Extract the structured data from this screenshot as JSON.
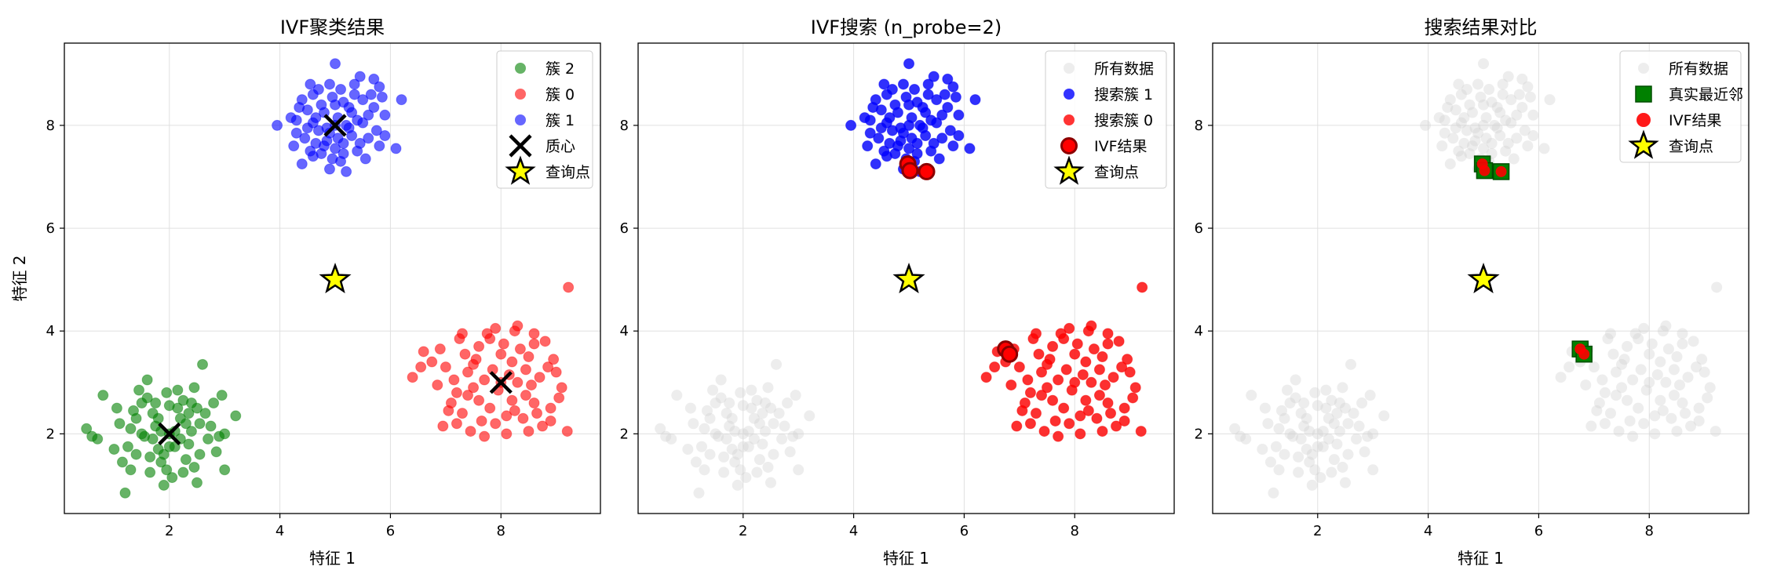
{
  "chart_data": [
    {
      "type": "scatter",
      "title": "IVF聚类结果",
      "xlabel": "特征 1",
      "ylabel": "特征 2",
      "xlim": [
        0.1,
        9.8
      ],
      "ylim": [
        0.45,
        9.6
      ],
      "xticks": [
        2,
        4,
        6,
        8
      ],
      "yticks": [
        2,
        4,
        6,
        8
      ],
      "grid": true,
      "legend_position": "top-right",
      "series": [
        {
          "name": "簇 2",
          "kind": "cluster",
          "color": "#008000",
          "cluster": 2
        },
        {
          "name": "簇 0",
          "kind": "cluster",
          "color": "#ff0000",
          "cluster": 0
        },
        {
          "name": "簇 1",
          "kind": "cluster",
          "color": "#0000ff",
          "cluster": 1
        },
        {
          "name": "质心",
          "kind": "centroid",
          "color": "#000000",
          "points": [
            [
              2.0,
              2.0
            ],
            [
              8.0,
              3.0
            ],
            [
              5.0,
              8.0
            ]
          ]
        },
        {
          "name": "查询点",
          "kind": "query",
          "color": "#ffff00",
          "points": [
            [
              5.0,
              5.0
            ]
          ]
        }
      ]
    },
    {
      "type": "scatter",
      "title": "IVF搜索 (n_probe=2)",
      "xlabel": "特征 1",
      "ylabel": "",
      "xlim": [
        0.1,
        9.8
      ],
      "ylim": [
        0.45,
        9.6
      ],
      "xticks": [
        2,
        4,
        6,
        8
      ],
      "yticks": [
        2,
        4,
        6,
        8
      ],
      "grid": true,
      "legend_position": "top-right",
      "series": [
        {
          "name": "所有数据",
          "kind": "background",
          "color": "#d3d3d3"
        },
        {
          "name": "搜索簇 1",
          "kind": "cluster",
          "color": "#0000ff",
          "cluster": 1
        },
        {
          "name": "搜索簇 0",
          "kind": "cluster",
          "color": "#ff0000",
          "cluster": 0
        },
        {
          "name": "IVF结果",
          "kind": "result",
          "color": "#ff0000",
          "points": [
            [
              4.98,
              7.25
            ],
            [
              5.02,
              7.12
            ],
            [
              5.32,
              7.1
            ],
            [
              6.75,
              3.65
            ],
            [
              6.82,
              3.55
            ]
          ]
        },
        {
          "name": "查询点",
          "kind": "query",
          "color": "#ffff00",
          "points": [
            [
              5.0,
              5.0
            ]
          ]
        }
      ]
    },
    {
      "type": "scatter",
      "title": "搜索结果对比",
      "xlabel": "特征 1",
      "ylabel": "",
      "xlim": [
        0.1,
        9.8
      ],
      "ylim": [
        0.45,
        9.6
      ],
      "xticks": [
        2,
        4,
        6,
        8
      ],
      "yticks": [
        2,
        4,
        6,
        8
      ],
      "grid": true,
      "legend_position": "top-right",
      "series": [
        {
          "name": "所有数据",
          "kind": "background",
          "color": "#d3d3d3"
        },
        {
          "name": "真实最近邻",
          "kind": "truth",
          "color": "#008000",
          "points": [
            [
              4.98,
              7.25
            ],
            [
              5.02,
              7.12
            ],
            [
              5.32,
              7.1
            ],
            [
              6.75,
              3.65
            ],
            [
              6.82,
              3.55
            ]
          ]
        },
        {
          "name": "IVF结果",
          "kind": "result_small",
          "color": "#ff0000",
          "points": [
            [
              4.98,
              7.25
            ],
            [
              5.02,
              7.12
            ],
            [
              5.32,
              7.1
            ],
            [
              6.75,
              3.65
            ],
            [
              6.82,
              3.55
            ]
          ]
        },
        {
          "name": "查询点",
          "kind": "query",
          "color": "#ffff00",
          "points": [
            [
              5.0,
              5.0
            ]
          ]
        }
      ]
    }
  ],
  "clusters": {
    "0": [
      [
        8.0,
        3.0
      ],
      [
        7.4,
        3.2
      ],
      [
        8.6,
        2.6
      ],
      [
        9.22,
        4.85
      ],
      [
        9.2,
        2.05
      ],
      [
        6.4,
        3.1
      ],
      [
        6.6,
        3.6
      ],
      [
        8.3,
        4.1
      ],
      [
        7.9,
        4.05
      ],
      [
        8.1,
        2.0
      ],
      [
        7.7,
        1.95
      ],
      [
        8.8,
        3.8
      ],
      [
        8.5,
        3.5
      ],
      [
        7.2,
        2.8
      ],
      [
        7.6,
        3.7
      ],
      [
        8.4,
        2.3
      ],
      [
        9.0,
        3.2
      ],
      [
        7.0,
        3.3
      ],
      [
        8.2,
        3.4
      ],
      [
        7.8,
        2.5
      ],
      [
        8.9,
        2.5
      ],
      [
        7.3,
        2.4
      ],
      [
        8.7,
        3.1
      ],
      [
        7.5,
        2.9
      ],
      [
        9.1,
        2.9
      ],
      [
        8.05,
        3.75
      ],
      [
        7.35,
        3.55
      ],
      [
        8.6,
        3.95
      ],
      [
        7.1,
        2.6
      ],
      [
        6.95,
        2.15
      ],
      [
        7.65,
        2.25
      ],
      [
        8.45,
        2.75
      ],
      [
        8.25,
        2.45
      ],
      [
        7.85,
        3.25
      ],
      [
        7.55,
        3.45
      ],
      [
        8.95,
        3.45
      ],
      [
        7.25,
        3.85
      ],
      [
        6.85,
        2.95
      ],
      [
        8.35,
        3.65
      ],
      [
        7.95,
        2.85
      ],
      [
        8.75,
        2.15
      ],
      [
        7.45,
        2.05
      ],
      [
        8.15,
        3.15
      ],
      [
        7.75,
        3.95
      ],
      [
        6.75,
        3.4
      ],
      [
        8.55,
        2.95
      ],
      [
        9.05,
        2.7
      ],
      [
        7.15,
        3.05
      ],
      [
        8.65,
        2.4
      ],
      [
        7.05,
        2.45
      ],
      [
        8.85,
        3.3
      ],
      [
        7.6,
        2.65
      ],
      [
        8.3,
        3.0
      ],
      [
        7.9,
        2.2
      ],
      [
        8.0,
        3.55
      ],
      [
        7.4,
        2.75
      ],
      [
        8.45,
        3.25
      ],
      [
        7.7,
        3.05
      ],
      [
        8.2,
        2.65
      ],
      [
        6.9,
        3.65
      ],
      [
        7.3,
        3.95
      ],
      [
        8.1,
        2.35
      ],
      [
        7.5,
        3.35
      ],
      [
        8.6,
        3.75
      ],
      [
        8.9,
        2.25
      ],
      [
        6.55,
        3.3
      ],
      [
        7.8,
        3.85
      ],
      [
        8.25,
        4.0
      ],
      [
        7.2,
        2.2
      ],
      [
        8.5,
        2.05
      ]
    ],
    "1": [
      [
        5.0,
        8.0
      ],
      [
        4.5,
        8.3
      ],
      [
        5.5,
        8.5
      ],
      [
        4.8,
        7.6
      ],
      [
        5.3,
        7.8
      ],
      [
        5.0,
        9.2
      ],
      [
        3.95,
        8.0
      ],
      [
        4.4,
        7.25
      ],
      [
        5.2,
        7.1
      ],
      [
        4.9,
        7.15
      ],
      [
        5.8,
        7.6
      ],
      [
        6.1,
        7.55
      ],
      [
        6.2,
        8.5
      ],
      [
        5.7,
        8.9
      ],
      [
        5.1,
        8.7
      ],
      [
        4.6,
        8.6
      ],
      [
        4.3,
        8.1
      ],
      [
        5.6,
        8.2
      ],
      [
        5.4,
        8.1
      ],
      [
        4.7,
        7.9
      ],
      [
        5.9,
        8.2
      ],
      [
        4.55,
        7.5
      ],
      [
        5.15,
        7.45
      ],
      [
        4.75,
        8.4
      ],
      [
        5.25,
        8.35
      ],
      [
        4.95,
        8.55
      ],
      [
        5.45,
        7.65
      ],
      [
        4.85,
        7.95
      ],
      [
        5.05,
        7.75
      ],
      [
        4.65,
        8.15
      ],
      [
        5.35,
        8.6
      ],
      [
        4.45,
        7.75
      ],
      [
        5.75,
        7.9
      ],
      [
        4.25,
        7.6
      ],
      [
        5.55,
        7.35
      ],
      [
        4.9,
        8.8
      ],
      [
        5.2,
        8.0
      ],
      [
        4.6,
        7.4
      ],
      [
        5.65,
        8.6
      ],
      [
        4.35,
        8.35
      ],
      [
        5.1,
        7.3
      ],
      [
        4.8,
        8.25
      ],
      [
        5.45,
        8.95
      ],
      [
        5.85,
        8.55
      ],
      [
        4.5,
        7.95
      ],
      [
        5.0,
        7.55
      ],
      [
        5.3,
        8.25
      ],
      [
        4.7,
        8.7
      ],
      [
        5.15,
        8.45
      ],
      [
        4.95,
        7.35
      ],
      [
        5.6,
        7.75
      ],
      [
        4.4,
        8.5
      ],
      [
        5.4,
        7.5
      ],
      [
        4.85,
        7.7
      ],
      [
        5.05,
        8.15
      ],
      [
        4.3,
        7.85
      ],
      [
        5.7,
        8.35
      ],
      [
        4.65,
        7.65
      ],
      [
        5.25,
        7.95
      ],
      [
        4.55,
        8.8
      ],
      [
        5.9,
        7.8
      ],
      [
        5.5,
        8.05
      ],
      [
        4.75,
        7.45
      ],
      [
        5.35,
        8.8
      ],
      [
        5.0,
        8.4
      ],
      [
        4.2,
        8.15
      ],
      [
        5.8,
        8.75
      ],
      [
        4.9,
        7.85
      ],
      [
        5.15,
        7.65
      ],
      [
        4.6,
        8.05
      ]
    ],
    "2": [
      [
        2.0,
        2.0
      ],
      [
        2.2,
        2.3
      ],
      [
        1.8,
        1.7
      ],
      [
        1.5,
        2.6
      ],
      [
        2.5,
        2.5
      ],
      [
        1.2,
        0.85
      ],
      [
        1.9,
        1.0
      ],
      [
        2.6,
        3.35
      ],
      [
        3.0,
        2.0
      ],
      [
        3.0,
        1.3
      ],
      [
        0.5,
        2.1
      ],
      [
        0.8,
        2.75
      ],
      [
        1.3,
        2.1
      ],
      [
        2.8,
        2.6
      ],
      [
        1.6,
        3.05
      ],
      [
        2.3,
        1.5
      ],
      [
        1.7,
        2.4
      ],
      [
        2.1,
        1.75
      ],
      [
        1.4,
        1.6
      ],
      [
        2.4,
        2.05
      ],
      [
        1.1,
        2.2
      ],
      [
        2.7,
        1.9
      ],
      [
        1.95,
        2.8
      ],
      [
        2.45,
        1.35
      ],
      [
        1.65,
        1.25
      ],
      [
        2.05,
        1.15
      ],
      [
        1.35,
        2.45
      ],
      [
        2.25,
        2.65
      ],
      [
        1.75,
        2.15
      ],
      [
        2.15,
        2.5
      ],
      [
        1.85,
        1.45
      ],
      [
        2.55,
        2.2
      ],
      [
        1.55,
        1.95
      ],
      [
        2.35,
        1.8
      ],
      [
        1.25,
        1.75
      ],
      [
        2.65,
        2.4
      ],
      [
        1.45,
        2.85
      ],
      [
        2.0,
        2.55
      ],
      [
        1.7,
        1.9
      ],
      [
        2.3,
        2.2
      ],
      [
        1.9,
        1.6
      ],
      [
        2.1,
        2.05
      ],
      [
        0.7,
        1.9
      ],
      [
        3.2,
        2.35
      ],
      [
        2.85,
        1.65
      ],
      [
        1.15,
        1.45
      ],
      [
        2.95,
        2.75
      ],
      [
        1.05,
        2.5
      ],
      [
        2.5,
        1.05
      ],
      [
        1.6,
        2.7
      ],
      [
        1.8,
        2.3
      ],
      [
        2.2,
        1.9
      ],
      [
        1.5,
        2.0
      ],
      [
        2.4,
        2.6
      ],
      [
        1.3,
        1.3
      ],
      [
        2.75,
        2.15
      ],
      [
        1.95,
        1.3
      ],
      [
        2.15,
        2.85
      ],
      [
        1.4,
        2.3
      ],
      [
        2.55,
        1.6
      ],
      [
        2.0,
        1.75
      ],
      [
        1.75,
        2.6
      ],
      [
        2.35,
        2.4
      ],
      [
        1.85,
        2.05
      ],
      [
        1.65,
        1.55
      ],
      [
        2.25,
        1.25
      ],
      [
        0.6,
        1.95
      ],
      [
        1.0,
        1.7
      ],
      [
        2.9,
        1.95
      ],
      [
        2.45,
        2.9
      ]
    ]
  }
}
